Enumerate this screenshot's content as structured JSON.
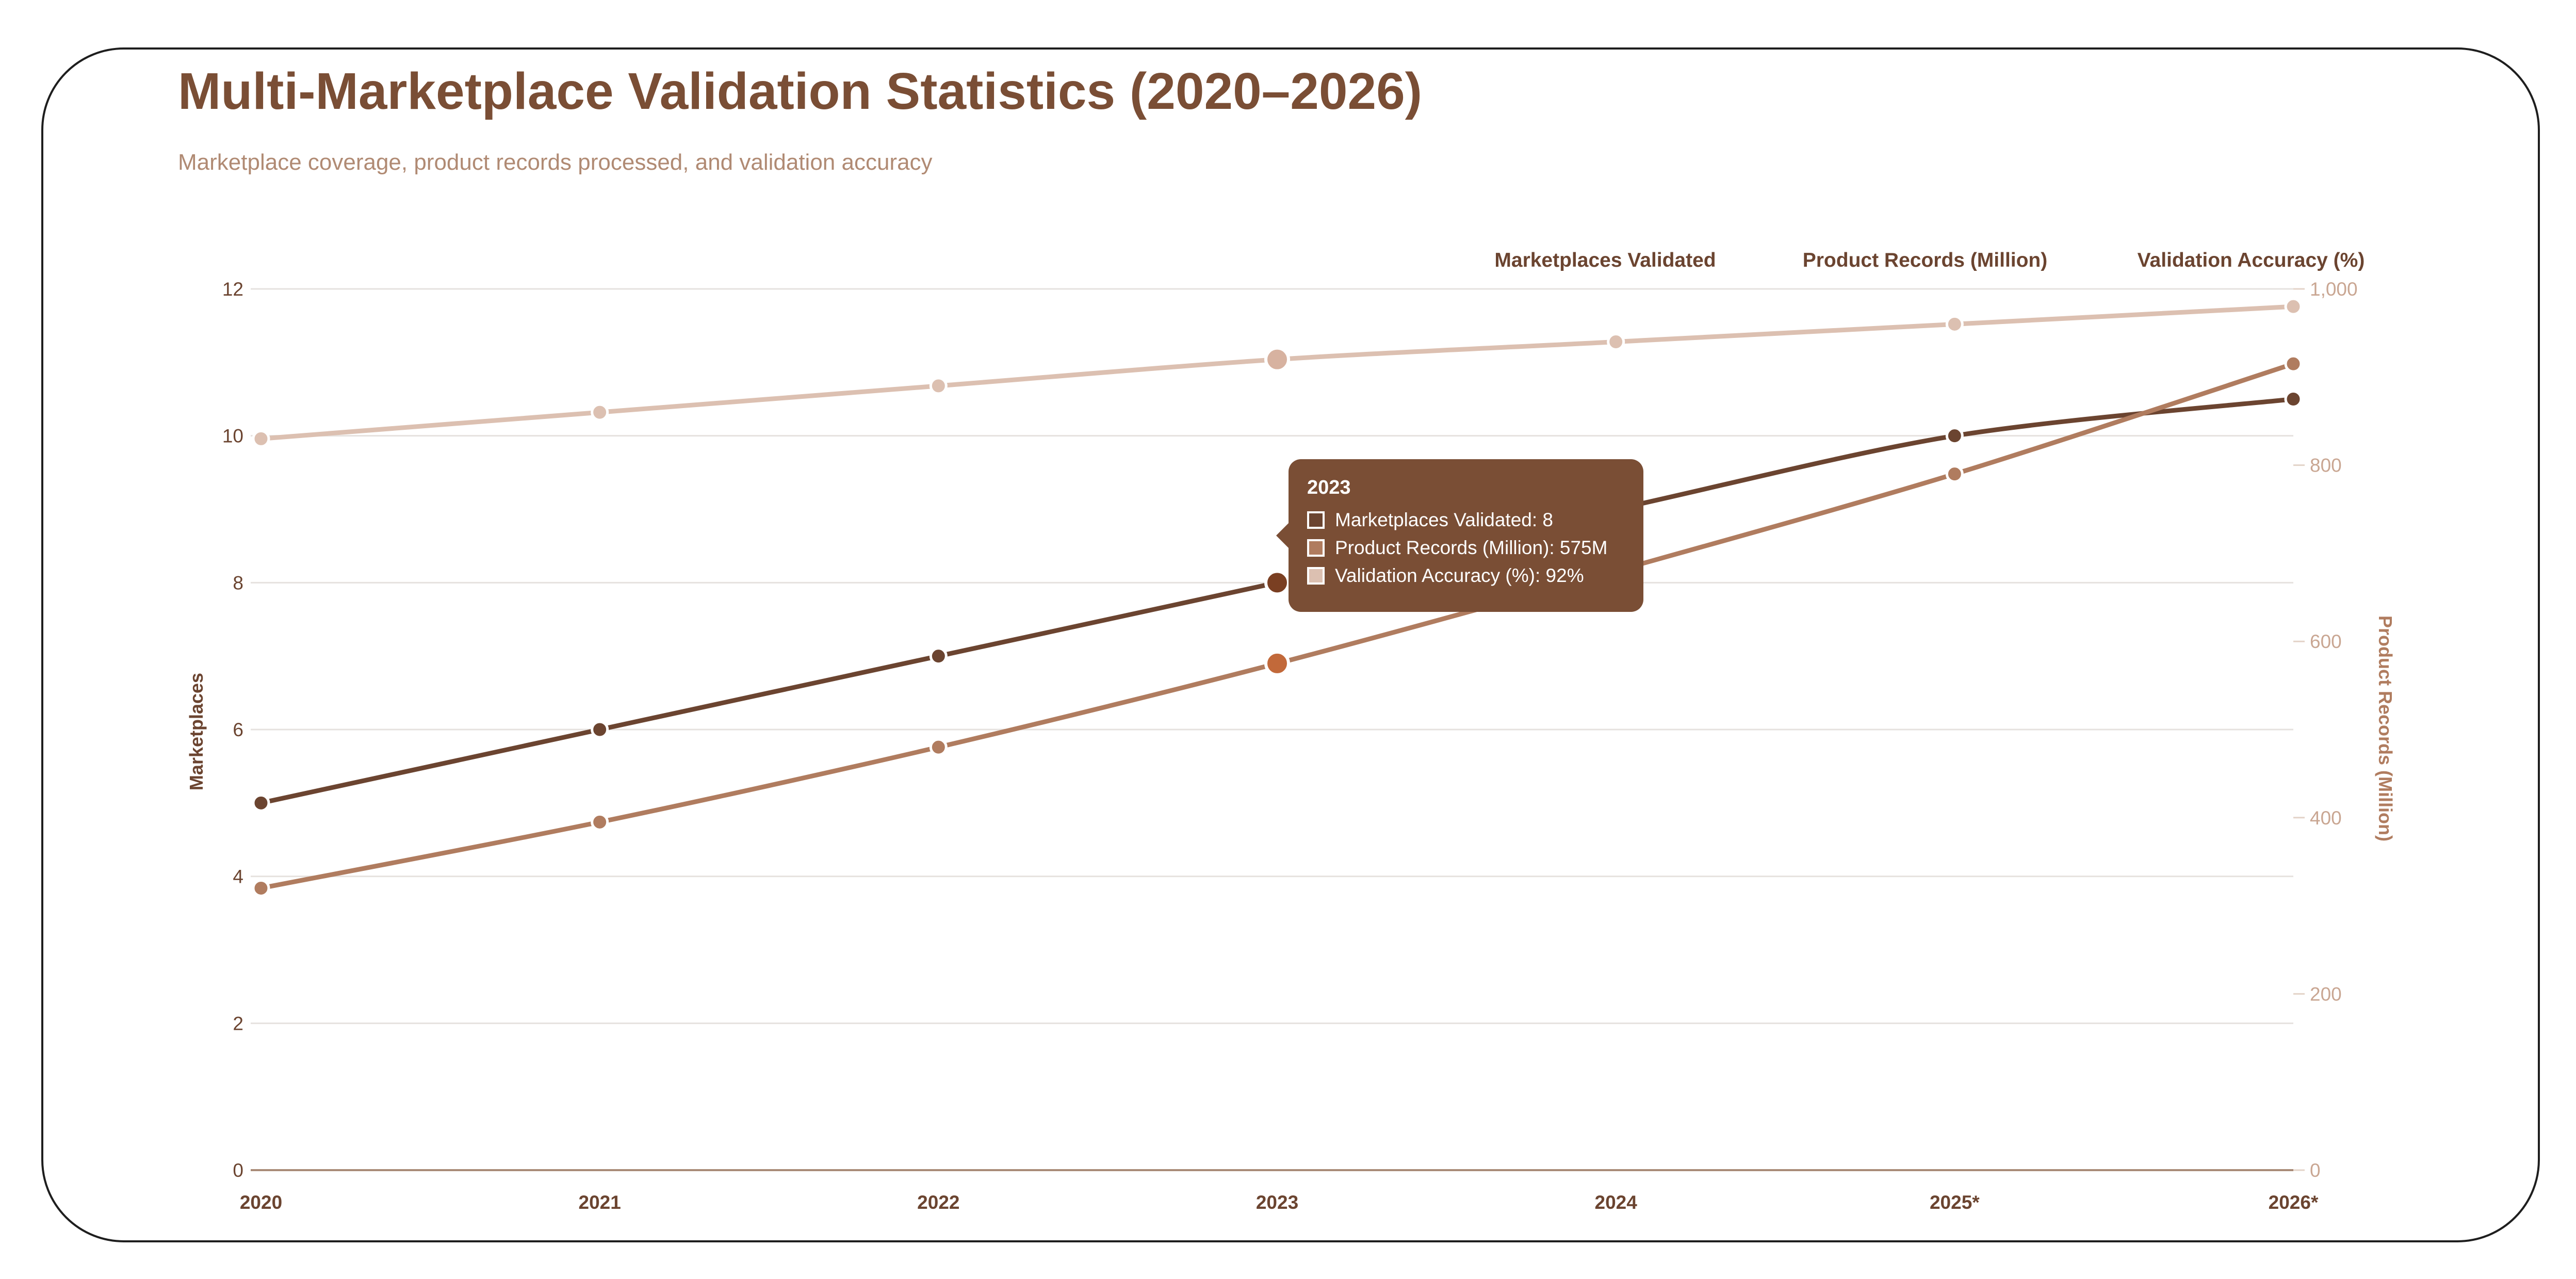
{
  "header": {
    "title": "Multi-Marketplace Validation Statistics (2020–2026)",
    "subtitle": "Marketplace coverage, product records processed, and validation accuracy"
  },
  "tooltip": {
    "title": "2023",
    "rows": [
      {
        "label": "Marketplaces Validated",
        "value": "8",
        "text": "Marketplaces Validated: 8"
      },
      {
        "label": "Product Records (Million)",
        "value": "575M",
        "text": "Product Records (Million): 575M"
      },
      {
        "label": "Validation Accuracy (%)",
        "value": "92%",
        "text": "Validation Accuracy (%): 92%"
      }
    ]
  },
  "chart_data": {
    "type": "line",
    "title": "Multi-Marketplace Validation Statistics (2020–2026)",
    "subtitle": "Marketplace coverage, product records processed, and validation accuracy",
    "categories": [
      "2020",
      "2021",
      "2022",
      "2023",
      "2024",
      "2025*",
      "2026*"
    ],
    "highlighted_category": "2023",
    "legend_position": "top-right",
    "grid": true,
    "y_left": {
      "label": "Marketplaces",
      "range": [
        0,
        12
      ],
      "ticks": [
        0,
        2,
        4,
        6,
        8,
        10,
        12
      ],
      "tick_labels": [
        "0",
        "2",
        "4",
        "6",
        "8",
        "10",
        "12"
      ]
    },
    "y_right": {
      "label": "Product Records (Million)",
      "range": [
        0,
        1000
      ],
      "ticks": [
        0,
        200,
        400,
        600,
        800,
        1000
      ],
      "tick_labels": [
        "0",
        "200",
        "400",
        "600",
        "800",
        "1,000"
      ]
    },
    "series": [
      {
        "name": "Marketplaces Validated",
        "axis": "left",
        "scale_range": [
          0,
          12
        ],
        "color": "#6b4430",
        "values": [
          5,
          6,
          7,
          8,
          9,
          10,
          10.5
        ]
      },
      {
        "name": "Product Records (Million)",
        "axis": "right",
        "scale_range": [
          0,
          1000
        ],
        "color": "#b07c5f",
        "values": [
          320,
          395,
          480,
          575,
          680,
          790,
          915
        ]
      },
      {
        "name": "Validation Accuracy (%)",
        "axis": "hidden",
        "scale_range": [
          0,
          100
        ],
        "color": "#dcc0b1",
        "values": [
          83,
          86,
          89,
          92,
          94,
          96,
          98
        ]
      }
    ]
  }
}
